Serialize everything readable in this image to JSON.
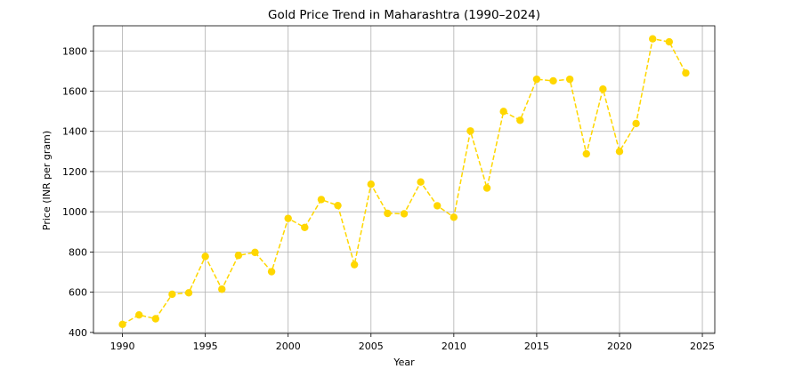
{
  "chart_data": {
    "type": "line",
    "title": "Gold Price Trend in Maharashtra (1990–2024)",
    "xlabel": "Year",
    "ylabel": "Price (INR per gram)",
    "xlim": [
      1988.25,
      2025.75
    ],
    "ylim": [
      395,
      1925
    ],
    "xticks": [
      1990,
      1995,
      2000,
      2005,
      2010,
      2015,
      2020,
      2025
    ],
    "yticks": [
      400,
      600,
      800,
      1000,
      1200,
      1400,
      1600,
      1800
    ],
    "grid": true,
    "line_style": "dashed",
    "marker": "circle",
    "color": "#ffd700",
    "series": [
      {
        "x": [
          1990,
          1991,
          1992,
          1993,
          1994,
          1995,
          1996,
          1997,
          1998,
          1999,
          2000,
          2001,
          2002,
          2003,
          2004,
          2005,
          2006,
          2007,
          2008,
          2009,
          2010,
          2011,
          2012,
          2013,
          2014,
          2015,
          2016,
          2017,
          2018,
          2019,
          2020,
          2021,
          2022,
          2023,
          2024
        ],
        "y": [
          440,
          487,
          468,
          590,
          597,
          778,
          615,
          783,
          798,
          702,
          967,
          922,
          1061,
          1031,
          737,
          1137,
          992,
          990,
          1148,
          1030,
          973,
          1402,
          1118,
          1499,
          1455,
          1659,
          1651,
          1659,
          1288,
          1610,
          1300,
          1439,
          1860,
          1845,
          1690
        ]
      }
    ]
  }
}
